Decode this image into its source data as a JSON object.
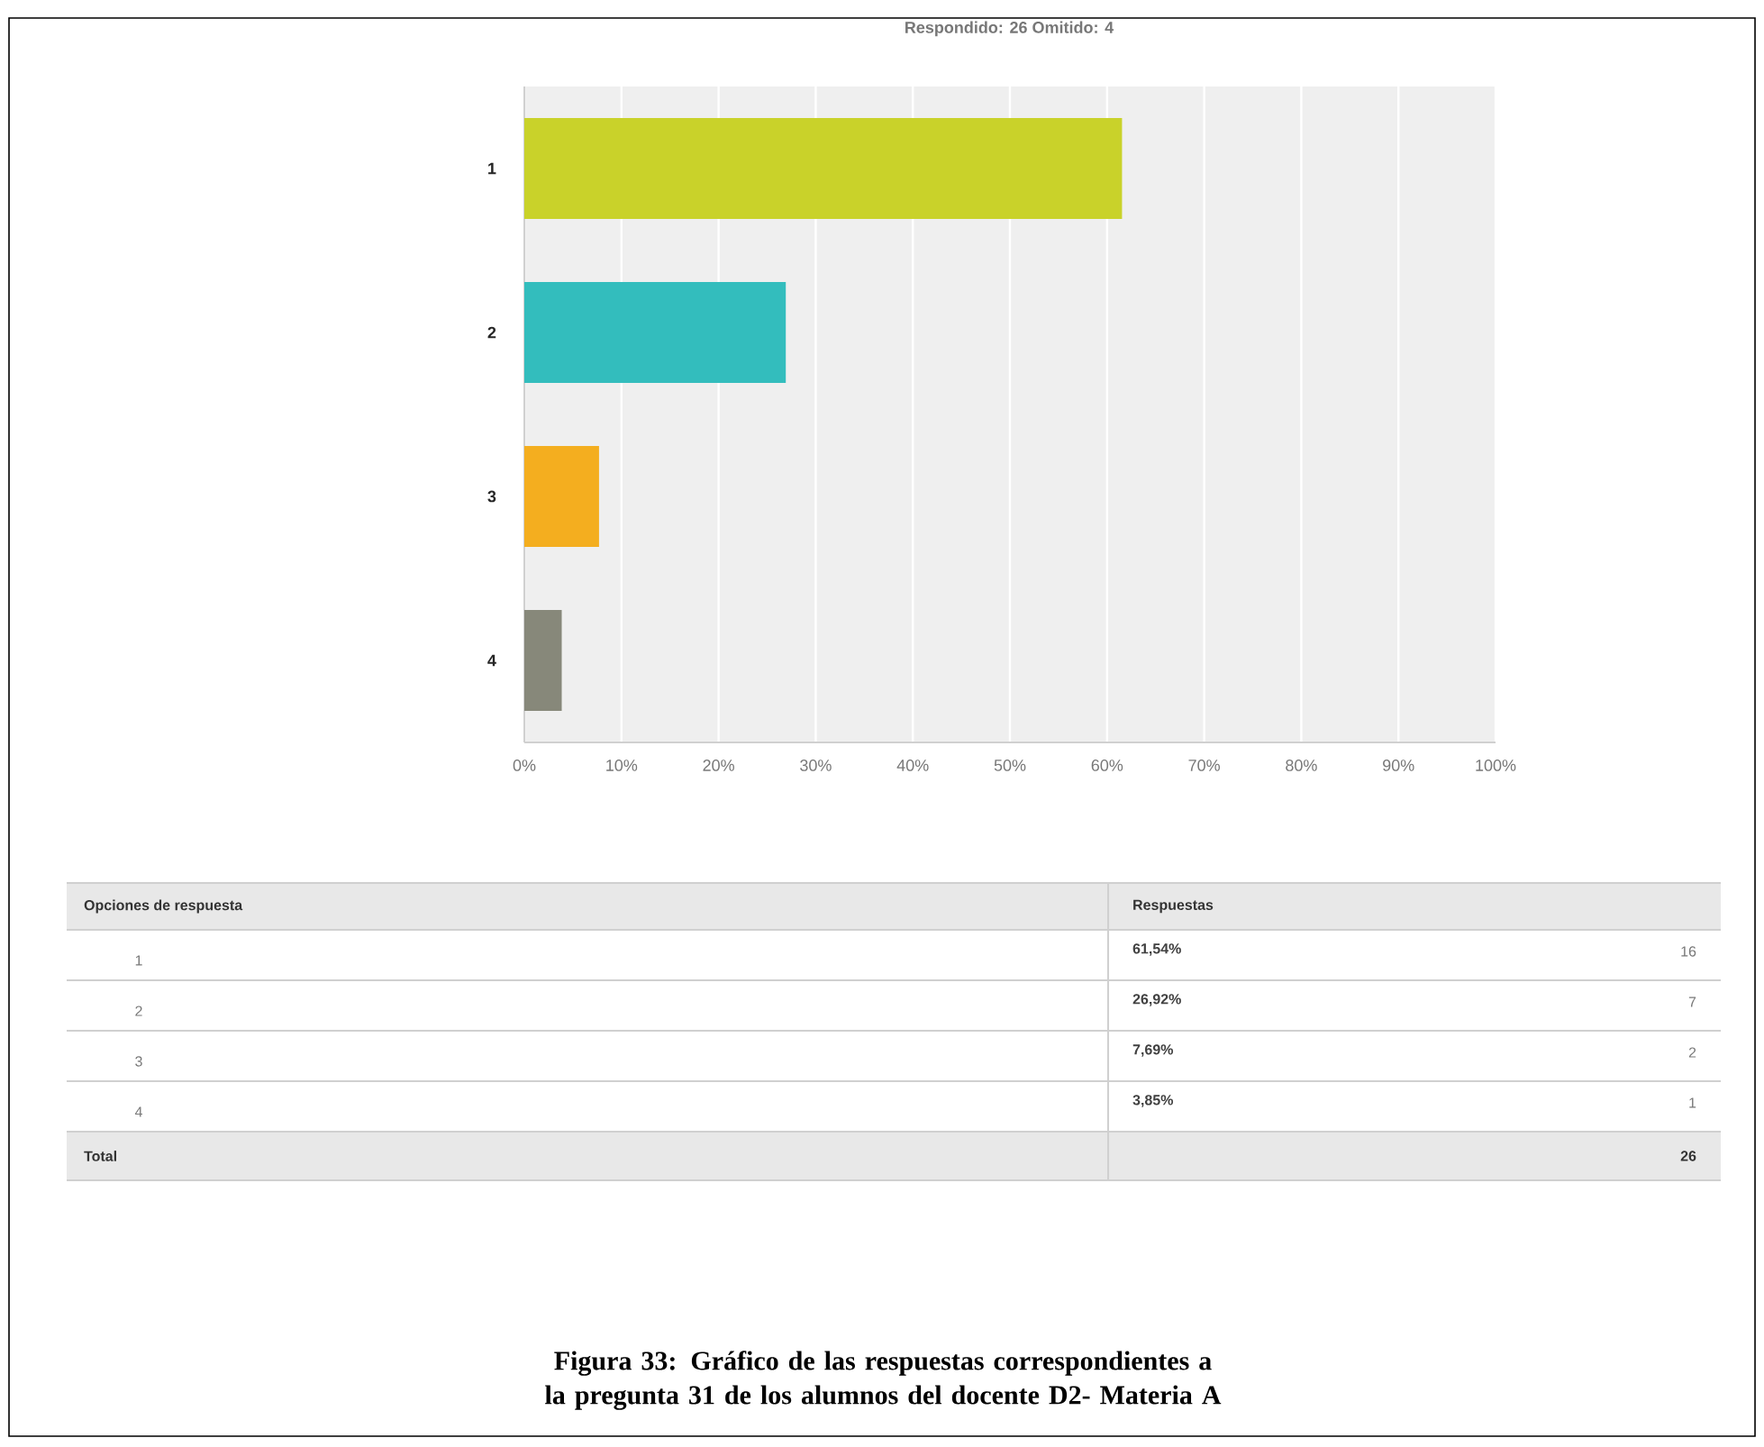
{
  "chart_data": {
    "type": "bar",
    "orientation": "horizontal",
    "subtitle": "Respondido: 26   Omitido: 4",
    "categories": [
      "1",
      "2",
      "3",
      "4"
    ],
    "values": [
      61.54,
      26.92,
      7.69,
      3.85
    ],
    "colors": [
      "#c9d22a",
      "#33bdbd",
      "#f4ae1f",
      "#87887a"
    ],
    "xlim": [
      0,
      100
    ],
    "xticks": [
      {
        "value": 0,
        "label": "0%"
      },
      {
        "value": 10,
        "label": "10%"
      },
      {
        "value": 20,
        "label": "20%"
      },
      {
        "value": 30,
        "label": "30%"
      },
      {
        "value": 40,
        "label": "40%"
      },
      {
        "value": 50,
        "label": "50%"
      },
      {
        "value": 60,
        "label": "60%"
      },
      {
        "value": 70,
        "label": "70%"
      },
      {
        "value": 80,
        "label": "80%"
      },
      {
        "value": 90,
        "label": "90%"
      },
      {
        "value": 100,
        "label": "100%"
      }
    ],
    "grid": "x",
    "annotations": [
      "Opciones de respuesta",
      "Respuestas",
      "61,54%",
      "26,92%",
      "7,69%",
      "3,85%",
      "16",
      "7",
      "2",
      "1",
      "Total",
      "26",
      "Figura 33: Gráfico de las respuestas correspondientes a la pregunta 31 de los alumnos del docente D2- Materia A"
    ]
  }
}
